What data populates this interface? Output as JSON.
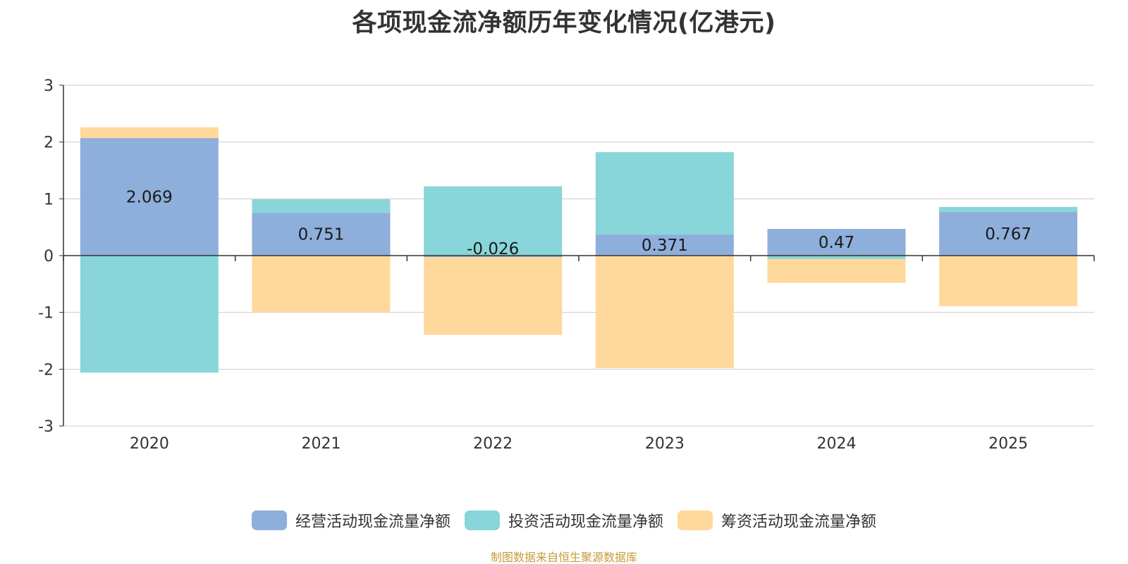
{
  "chart_data": {
    "type": "bar",
    "stacked": true,
    "title": "各项现金流净额历年变化情况(亿港元)",
    "categories": [
      "2020",
      "2021",
      "2022",
      "2023",
      "2024",
      "2025"
    ],
    "series": [
      {
        "name": "经营活动现金流量净额",
        "color": "#8eaedb",
        "values": [
          2.069,
          0.751,
          -0.026,
          0.371,
          0.47,
          0.767
        ]
      },
      {
        "name": "投资活动现金流量净额",
        "color": "#88d6d9",
        "values": [
          -2.06,
          0.24,
          1.22,
          1.45,
          -0.06,
          0.09
        ]
      },
      {
        "name": "筹资活动现金流量净额",
        "color": "#ffd89b",
        "values": [
          0.19,
          -1.0,
          -1.37,
          -1.98,
          -0.42,
          -0.89
        ]
      }
    ],
    "data_labels": [
      "2.069",
      "0.751",
      "-0.026",
      "0.371",
      "0.47",
      "0.767"
    ],
    "y_ticks": [
      "3",
      "2",
      "1",
      "0",
      "-1",
      "-2",
      "-3"
    ],
    "ylim": [
      -3,
      3
    ],
    "grid": true,
    "legend_position": "bottom"
  },
  "source_text": "制图数据来自恒生聚源数据库"
}
